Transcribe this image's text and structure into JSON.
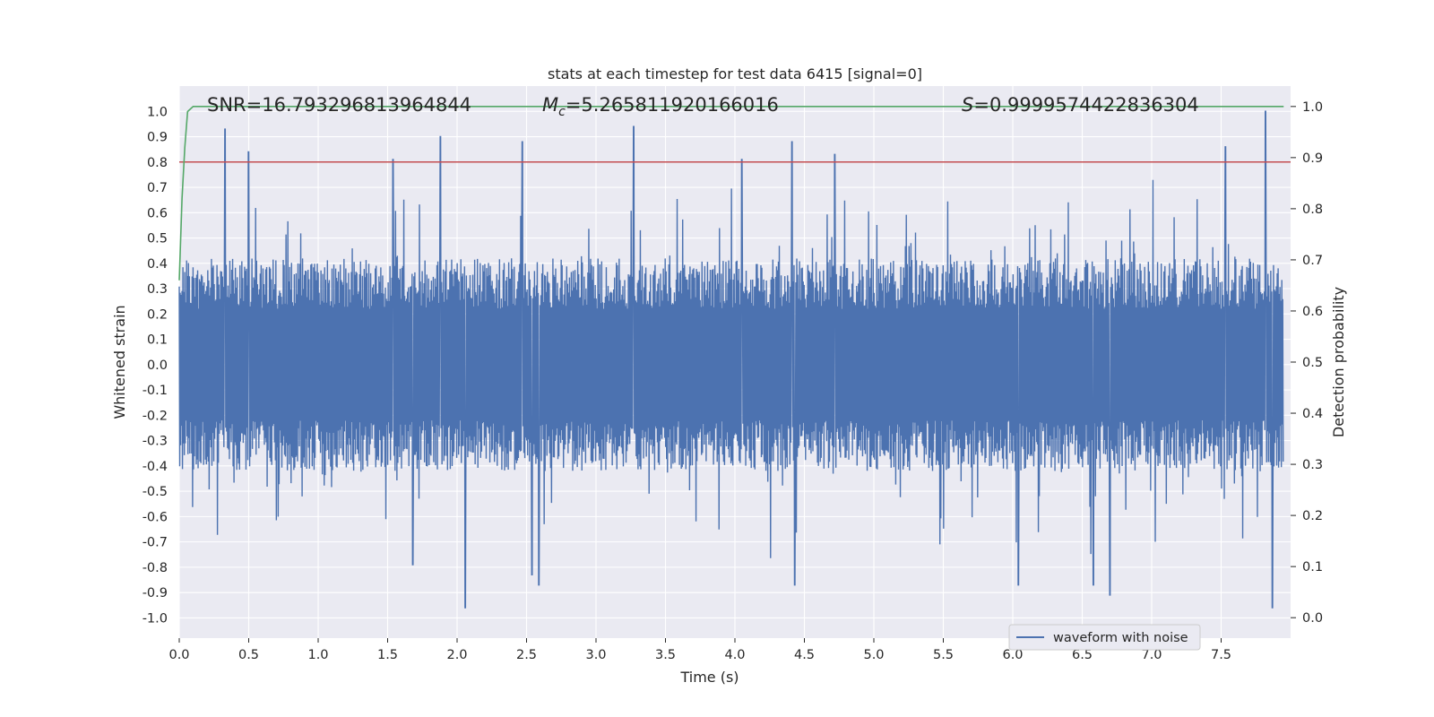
{
  "chart_data": {
    "type": "line",
    "title": "stats at each timestep for test data 6415 [signal=0]",
    "xlabel": "Time (s)",
    "ylabel_left": "Whitened strain",
    "ylabel_right": "Detection probability",
    "xlim": [
      0.0,
      8.0
    ],
    "ylim_left": [
      -1.08,
      1.1
    ],
    "ylim_right": [
      -0.04,
      1.04
    ],
    "x_ticks": [
      "0.0",
      "0.5",
      "1.0",
      "1.5",
      "2.0",
      "2.5",
      "3.0",
      "3.5",
      "4.0",
      "4.5",
      "5.0",
      "5.5",
      "6.0",
      "6.5",
      "7.0",
      "7.5"
    ],
    "x_tick_values": [
      0.0,
      0.5,
      1.0,
      1.5,
      2.0,
      2.5,
      3.0,
      3.5,
      4.0,
      4.5,
      5.0,
      5.5,
      6.0,
      6.5,
      7.0,
      7.5
    ],
    "y_left_ticks": [
      "1.0",
      "0.9",
      "0.8",
      "0.7",
      "0.6",
      "0.5",
      "0.4",
      "0.3",
      "0.2",
      "0.1",
      "0.0",
      "-0.1",
      "-0.2",
      "-0.3",
      "-0.4",
      "-0.5",
      "-0.6",
      "-0.7",
      "-0.8",
      "-0.9",
      "-1.0"
    ],
    "y_left_tick_values": [
      1.0,
      0.9,
      0.8,
      0.7,
      0.6,
      0.5,
      0.4,
      0.3,
      0.2,
      0.1,
      0.0,
      -0.1,
      -0.2,
      -0.3,
      -0.4,
      -0.5,
      -0.6,
      -0.7,
      -0.8,
      -0.9,
      -1.0
    ],
    "y_right_ticks": [
      "1.0",
      "0.9",
      "0.8",
      "0.7",
      "0.6",
      "0.5",
      "0.4",
      "0.3",
      "0.2",
      "0.1",
      "0.0"
    ],
    "y_right_tick_values": [
      1.0,
      0.9,
      0.8,
      0.7,
      0.6,
      0.5,
      0.4,
      0.3,
      0.2,
      0.1,
      0.0
    ],
    "annotations": {
      "snr": "SNR=16.793296813964844",
      "mc_symbol": "M",
      "mc_subscript": "c",
      "mc_value": "=5.265811920166016",
      "s_symbol": "S",
      "s_value": "=0.9999574422836304"
    },
    "threshold_line": {
      "value": 0.8,
      "axis": "left",
      "color": "#c44e52"
    },
    "series": [
      {
        "name": "waveform with noise",
        "axis": "left",
        "color": "#4c72b0",
        "description_of_envelope": "dense noise, typical amplitude about ±0.4, peaks up to ~±1.0",
        "peaks": [
          {
            "x": 0.33,
            "y": 0.93
          },
          {
            "x": 0.5,
            "y": 0.84
          },
          {
            "x": 1.54,
            "y": 0.81
          },
          {
            "x": 1.88,
            "y": 0.9
          },
          {
            "x": 2.47,
            "y": 0.88
          },
          {
            "x": 3.27,
            "y": 0.94
          },
          {
            "x": 4.05,
            "y": 0.81
          },
          {
            "x": 4.41,
            "y": 0.88
          },
          {
            "x": 4.72,
            "y": 0.83
          },
          {
            "x": 7.53,
            "y": 0.86
          },
          {
            "x": 7.82,
            "y": 1.0
          },
          {
            "x": 2.06,
            "y": -0.96
          },
          {
            "x": 2.54,
            "y": -0.83
          },
          {
            "x": 2.59,
            "y": -0.87
          },
          {
            "x": 4.43,
            "y": -0.87
          },
          {
            "x": 6.04,
            "y": -0.87
          },
          {
            "x": 6.58,
            "y": -0.87
          },
          {
            "x": 6.7,
            "y": -0.91
          },
          {
            "x": 7.87,
            "y": -0.96
          },
          {
            "x": 1.68,
            "y": -0.79
          }
        ]
      },
      {
        "name": "",
        "axis": "right",
        "color": "#55a868",
        "x": [
          0.0,
          0.02,
          0.04,
          0.06,
          0.1,
          0.2,
          1.0,
          3.0,
          5.0,
          7.0,
          7.95
        ],
        "values": [
          0.66,
          0.82,
          0.92,
          0.99,
          1.0,
          1.0,
          1.0,
          1.0,
          1.0,
          1.0,
          1.0
        ]
      }
    ],
    "legend": {
      "entries": [
        "waveform with noise"
      ],
      "position": "lower-right"
    },
    "grid": true,
    "style": {
      "background": "#eaeaf2",
      "grid_color": "#ffffff"
    }
  }
}
